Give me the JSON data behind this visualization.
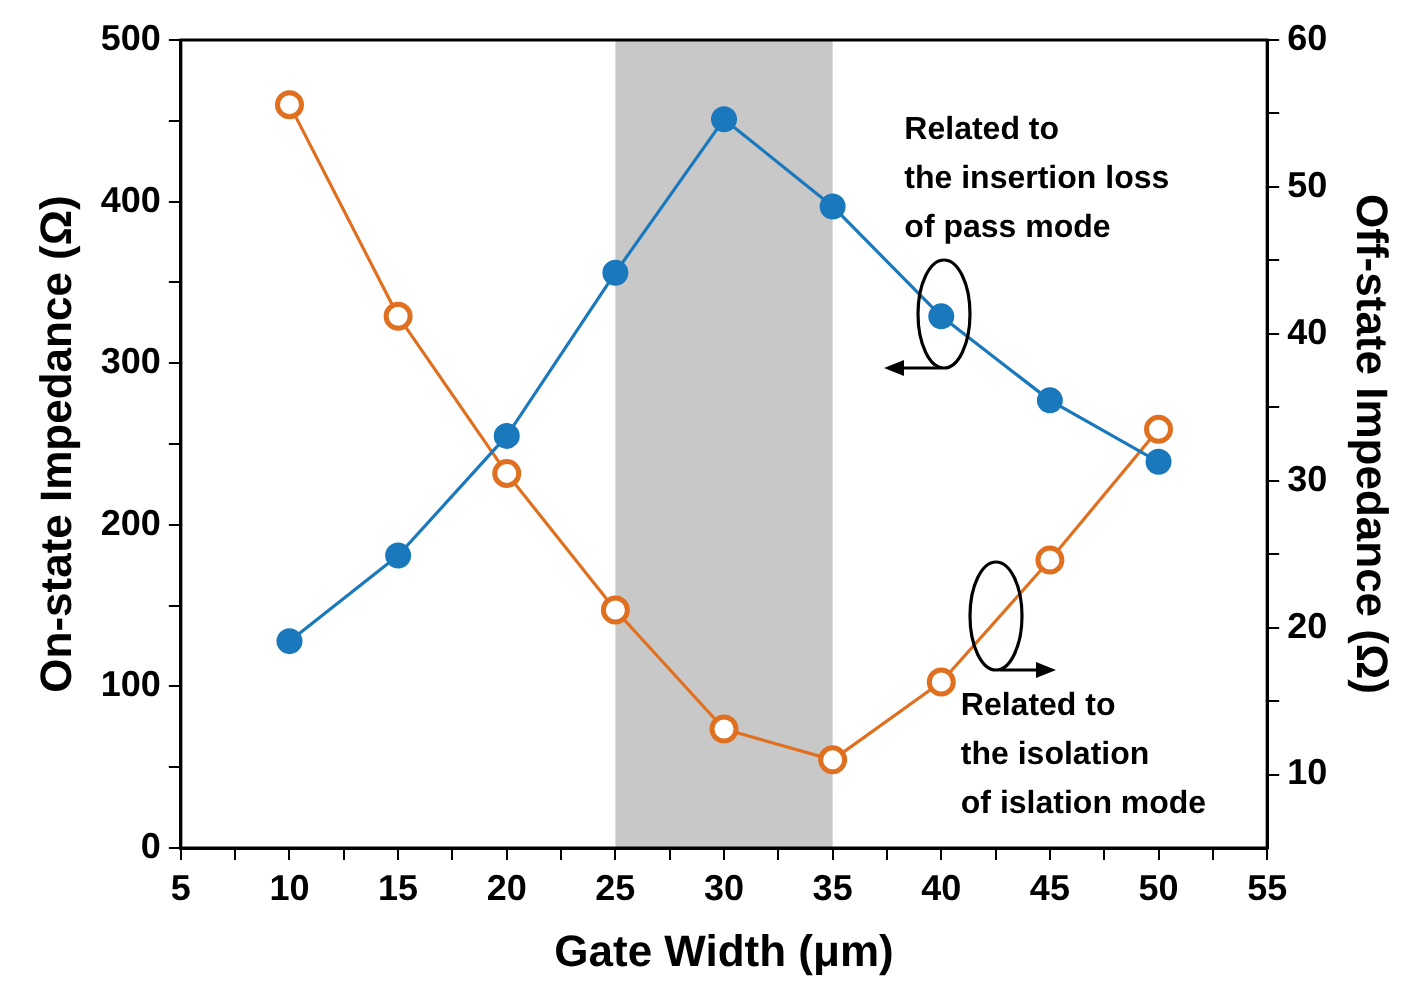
{
  "chart_data": {
    "type": "line",
    "xlabel": "Gate Width (μm)",
    "ylabel": "On-state Impedance (Ω)",
    "y2label": "Off-state Impedance (Ω)",
    "x": [
      10,
      15,
      20,
      25,
      30,
      35,
      40,
      45,
      50
    ],
    "series": [
      {
        "color": "#1a78bc",
        "values": [
          128,
          181,
          255,
          356,
          451,
          397,
          329,
          277,
          239
        ]
      },
      {
        "color": "#e07020",
        "axis": "y2",
        "values": [
          55.6,
          41.2,
          30.5,
          21.2,
          13.1,
          11.0,
          16.3,
          24.6,
          33.5
        ]
      }
    ],
    "xlim": [
      5,
      55
    ],
    "xticks": [
      5,
      {
        "value": 7.5,
        "label": null
      },
      10,
      {
        "value": 12.5,
        "label": null
      },
      15,
      {
        "value": 17.5,
        "label": null
      },
      20,
      {
        "value": 22.5,
        "label": null
      },
      25,
      {
        "value": 27.5,
        "label": null
      },
      30,
      {
        "value": 32.5,
        "label": null
      },
      35,
      {
        "value": 37.5,
        "label": null
      },
      40,
      {
        "value": 42.5,
        "label": null
      },
      45,
      {
        "value": 47.5,
        "label": null
      },
      50,
      {
        "value": 52.5,
        "label": null
      },
      55
    ],
    "ylim": [
      0,
      500
    ],
    "yticks": [
      0,
      {
        "value": 50,
        "label": null
      },
      100,
      {
        "value": 150,
        "label": null
      },
      200,
      {
        "value": 250,
        "label": null
      },
      300,
      {
        "value": 350,
        "label": null
      },
      400,
      {
        "value": 450,
        "label": null
      },
      500
    ],
    "y2lim": [
      5,
      60
    ],
    "y2ticks": [
      10,
      {
        "value": 15,
        "label": null
      },
      20,
      {
        "value": 25,
        "label": null
      },
      30,
      {
        "value": 35,
        "label": null
      },
      40,
      {
        "value": 45,
        "label": null
      },
      50,
      {
        "value": 55,
        "label": null
      },
      60
    ],
    "bands": [
      {
        "axis": "x",
        "from": 25,
        "to": 35,
        "color": "#c8c8c8"
      }
    ],
    "annotations": [
      "Related to\nthe insertion loss\nof pass mode",
      "Related to\nthe isolation\nof islation mode"
    ],
    "marker": "circle",
    "line_style": "solid",
    "grid": false,
    "legend": false
  }
}
